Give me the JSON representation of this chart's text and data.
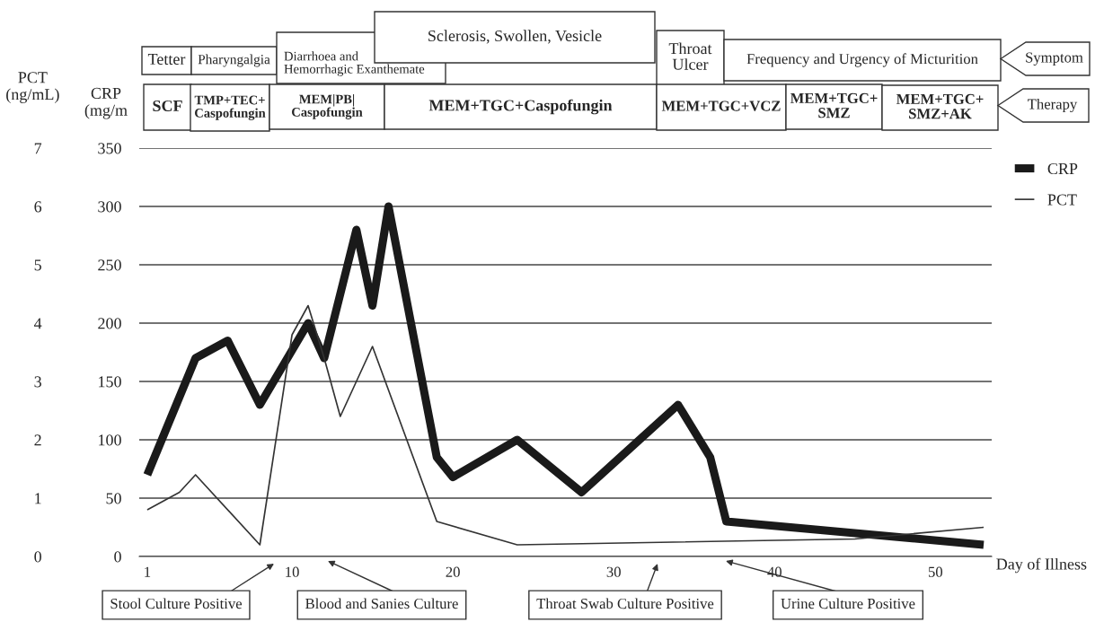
{
  "chart_data": {
    "type": "line",
    "xlabel": "Day of Illness",
    "ylabel": "CRP\n(mg/m",
    "y2label": "PCT\n(ng/mL)",
    "series": [
      {
        "name": "CRP",
        "color": "#1a1a1a",
        "x": [
          1,
          4,
          6,
          8,
          11,
          12,
          14,
          15,
          16,
          19,
          20,
          24,
          28,
          34,
          36,
          37,
          53
        ],
        "values": [
          70,
          170,
          185,
          130,
          200,
          170,
          280,
          215,
          300,
          85,
          68,
          100,
          55,
          130,
          85,
          30,
          10
        ]
      },
      {
        "name": "PCT",
        "color": "#333333",
        "axis": "y2",
        "x": [
          1,
          3,
          4,
          8,
          10,
          11,
          12,
          13,
          15,
          19,
          24,
          45,
          53
        ],
        "values": [
          0.8,
          1.1,
          1.4,
          0.2,
          3.8,
          4.3,
          3.4,
          2.4,
          3.6,
          0.6,
          0.2,
          0.3,
          0.5
        ]
      }
    ],
    "xlim": [
      0.5,
      53.5
    ],
    "xticks": [
      1,
      10,
      20,
      30,
      40,
      50
    ],
    "ylim": [
      0,
      350
    ],
    "yticks": [
      0,
      50,
      100,
      150,
      200,
      250,
      300,
      350
    ],
    "y2lim": [
      0,
      7
    ],
    "y2ticks": [
      0,
      1,
      2,
      3,
      4,
      5,
      6,
      7
    ],
    "grid": "y",
    "legend": "top right",
    "annotations": [
      "Tetter",
      "Pharyngalgia",
      "Diarrhoea and\nHemorrhagic Exanthemate",
      "Sclerosis, Swollen, Vesicle",
      "Throat\nUlcer",
      "Frequency and Urgency of Micturition",
      "Symptom",
      "SCF",
      "TMP+TEC+\nCaspofungin",
      "MEM|PB|\nCaspofungin",
      "MEM+TGC+Caspofungin",
      "MEM+TGC+VCZ",
      "MEM+TGC+\nSMZ",
      "MEM+TGC+\nSMZ+AK",
      "Therapy",
      "Stool Culture Positive",
      "Blood and Sanies Culture",
      "Throat Swab Culture Positive",
      "Urine Culture Positive"
    ]
  }
}
